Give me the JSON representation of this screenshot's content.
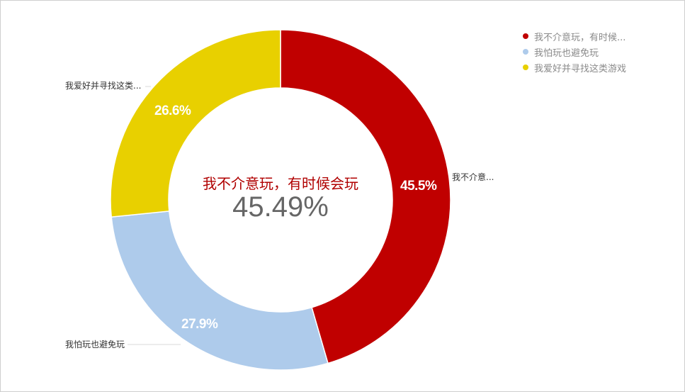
{
  "chart_data": {
    "type": "pie",
    "subtype": "donut",
    "categories": [
      "我不介意玩，有时候会玩",
      "我怕玩也避免玩",
      "我爱好并寻找这类游戏"
    ],
    "values": [
      45.5,
      27.9,
      26.6
    ],
    "colors": [
      "#c00000",
      "#aecbeb",
      "#e8d000"
    ],
    "title": "",
    "center_label": "我不介意玩，有时候会玩",
    "center_value": "45.49%",
    "legend_position": "top-right"
  },
  "center": {
    "title": "我不介意玩，有时候会玩",
    "value": "45.49%"
  },
  "slices": [
    {
      "pct_label": "45.5%",
      "outer_label": "我不介意...",
      "color": "#c00000"
    },
    {
      "pct_label": "27.9%",
      "outer_label": "我怕玩也避免玩",
      "color": "#aecbeb"
    },
    {
      "pct_label": "26.6%",
      "outer_label": "我爱好并寻找这类...",
      "color": "#e8d000"
    }
  ],
  "legend": {
    "items": [
      {
        "label": "我不介意玩，有时候...",
        "color": "#c00000"
      },
      {
        "label": "我怕玩也避免玩",
        "color": "#aecbeb"
      },
      {
        "label": "我爱好并寻找这类游戏",
        "color": "#e8d000"
      }
    ]
  }
}
